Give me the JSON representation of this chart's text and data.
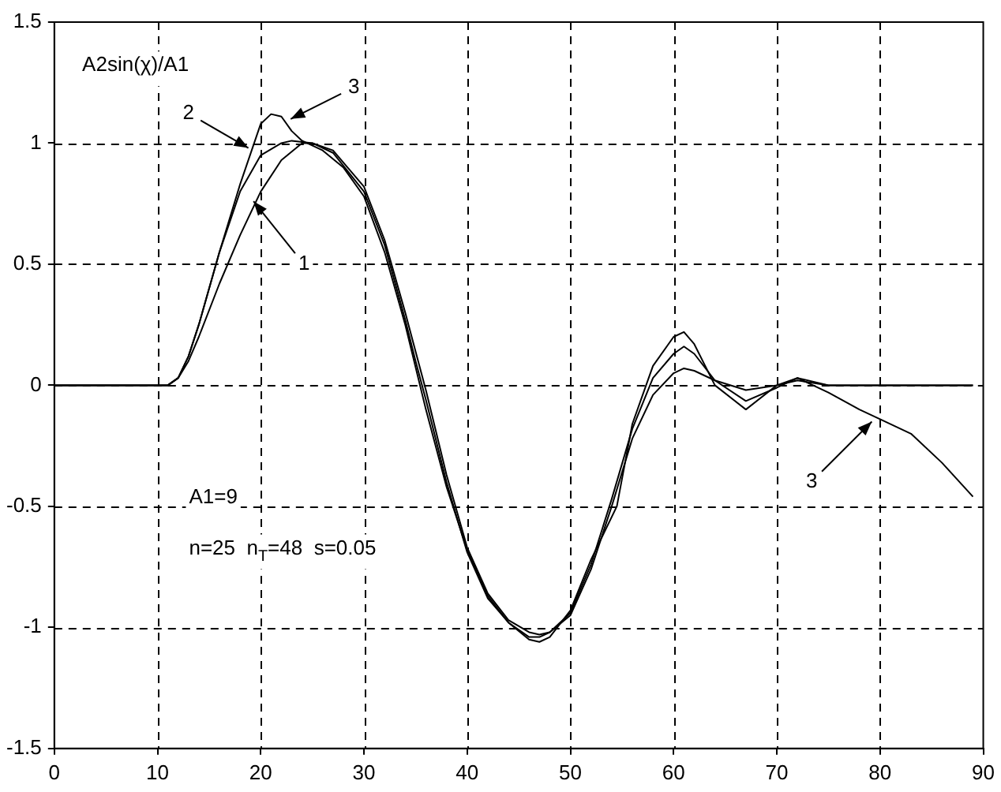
{
  "chart_data": {
    "type": "line",
    "xlim": [
      0,
      90
    ],
    "ylim": [
      -1.5,
      1.5
    ],
    "xticks": [
      0,
      10,
      20,
      30,
      40,
      50,
      60,
      70,
      80,
      90
    ],
    "yticks": [
      -1.5,
      -1,
      -0.5,
      0,
      0.5,
      1,
      1.5
    ],
    "grid": true,
    "legend": false,
    "marker": "none",
    "line_style": "solid",
    "series": [
      {
        "color": "#000000",
        "x": [
          0,
          10,
          11,
          12,
          13,
          14,
          16,
          18,
          20,
          22,
          24,
          25,
          27,
          30,
          32,
          34,
          35,
          36,
          38,
          40,
          42,
          44,
          46,
          47,
          48,
          50,
          52,
          54,
          56,
          58,
          60,
          61,
          62,
          64,
          67,
          70,
          72,
          75,
          80,
          85,
          89
        ],
        "values": [
          0,
          0,
          0,
          0.03,
          0.1,
          0.2,
          0.42,
          0.62,
          0.8,
          0.93,
          1,
          1,
          0.97,
          0.82,
          0.6,
          0.3,
          0.14,
          -0.02,
          -0.37,
          -0.67,
          -0.86,
          -0.97,
          -1.02,
          -1.03,
          -1.02,
          -0.95,
          -0.76,
          -0.5,
          -0.22,
          -0.04,
          0.05,
          0.07,
          0.06,
          0.02,
          -0.02,
          0,
          0.02,
          0,
          0,
          0,
          0
        ]
      },
      {
        "color": "#000000",
        "x": [
          0,
          10,
          11,
          12,
          13,
          14,
          16,
          18,
          20,
          22,
          23,
          25,
          27,
          30,
          32,
          34,
          35,
          36,
          38,
          40,
          42,
          44,
          46,
          47,
          48,
          50,
          52,
          54,
          56,
          58,
          60,
          61,
          62,
          64,
          67,
          70,
          72,
          75,
          80,
          85,
          89
        ],
        "values": [
          0,
          0,
          0,
          0.03,
          0.12,
          0.25,
          0.55,
          0.8,
          0.95,
          1,
          1.01,
          1,
          0.96,
          0.8,
          0.58,
          0.27,
          0.1,
          -0.06,
          -0.4,
          -0.69,
          -0.88,
          -0.98,
          -1.04,
          -1.04,
          -1.02,
          -0.94,
          -0.74,
          -0.47,
          -0.18,
          0.03,
          0.13,
          0.16,
          0.13,
          0.02,
          -0.065,
          -0.01,
          0.03,
          0,
          0,
          0,
          0
        ]
      },
      {
        "color": "#000000",
        "x": [
          0,
          10,
          11,
          12,
          13,
          14,
          16,
          18,
          20,
          21,
          22,
          23,
          24,
          26,
          28,
          30,
          32,
          34,
          36,
          38,
          40,
          42,
          44,
          46,
          47,
          48,
          50,
          52,
          54.5,
          56,
          58,
          60,
          61,
          62,
          64,
          67,
          70,
          72,
          75,
          78,
          80,
          83,
          86,
          89
        ],
        "values": [
          0,
          0,
          0,
          0.03,
          0.12,
          0.25,
          0.55,
          0.83,
          1.08,
          1.12,
          1.11,
          1.05,
          1.01,
          0.97,
          0.9,
          0.78,
          0.55,
          0.25,
          -0.1,
          -0.42,
          -0.68,
          -0.87,
          -0.98,
          -1.05,
          -1.06,
          -1.04,
          -0.93,
          -0.72,
          -0.5,
          -0.16,
          0.08,
          0.2,
          0.22,
          0.17,
          0,
          -0.1,
          0,
          0.03,
          -0.03,
          -0.1,
          -0.14,
          -0.2,
          -0.32,
          -0.46
        ]
      }
    ],
    "annotations": [
      "A2sin(χ)/A1",
      "A1=9",
      "n=25  n$_{T}$=48  s=0.05",
      {
        "text": "1",
        "x": 19.3,
        "y": 0.76
      },
      {
        "text": "2",
        "x": 18.8,
        "y": 0.98
      },
      {
        "text": "3",
        "x": 22.9,
        "y": 1.1
      },
      {
        "text": "3",
        "x": 79.2,
        "y": -0.15
      }
    ]
  }
}
